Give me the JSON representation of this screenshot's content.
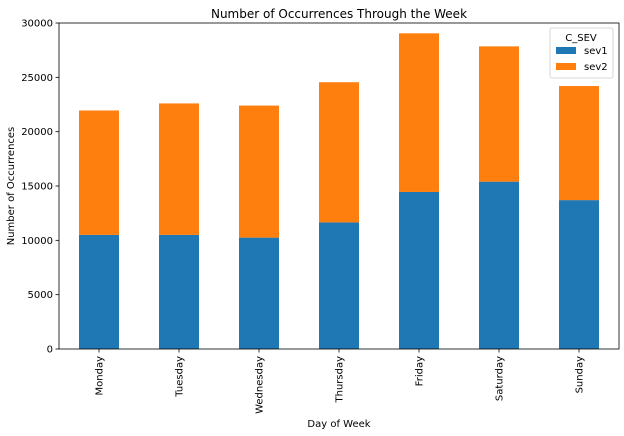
{
  "chart_data": {
    "type": "bar",
    "stacked": true,
    "title": "Number of Occurrences Through the Week",
    "xlabel": "Day of Week",
    "ylabel": "Number of Occurrences",
    "categories": [
      "Monday",
      "Tuesday",
      "Wednesday",
      "Thursday",
      "Friday",
      "Saturday",
      "Sunday"
    ],
    "series": [
      {
        "name": "sev1",
        "color": "#1f77b4",
        "values": [
          10500,
          10500,
          10250,
          11650,
          14450,
          15400,
          13700
        ]
      },
      {
        "name": "sev2",
        "color": "#ff7f0e",
        "values": [
          11450,
          12100,
          12150,
          12900,
          14600,
          12450,
          10500
        ]
      }
    ],
    "ylim": [
      0,
      30000
    ],
    "yticks": [
      0,
      5000,
      10000,
      15000,
      20000,
      25000,
      30000
    ],
    "grid": false,
    "legend": {
      "title": "C_SEV",
      "position": "top-right"
    }
  }
}
